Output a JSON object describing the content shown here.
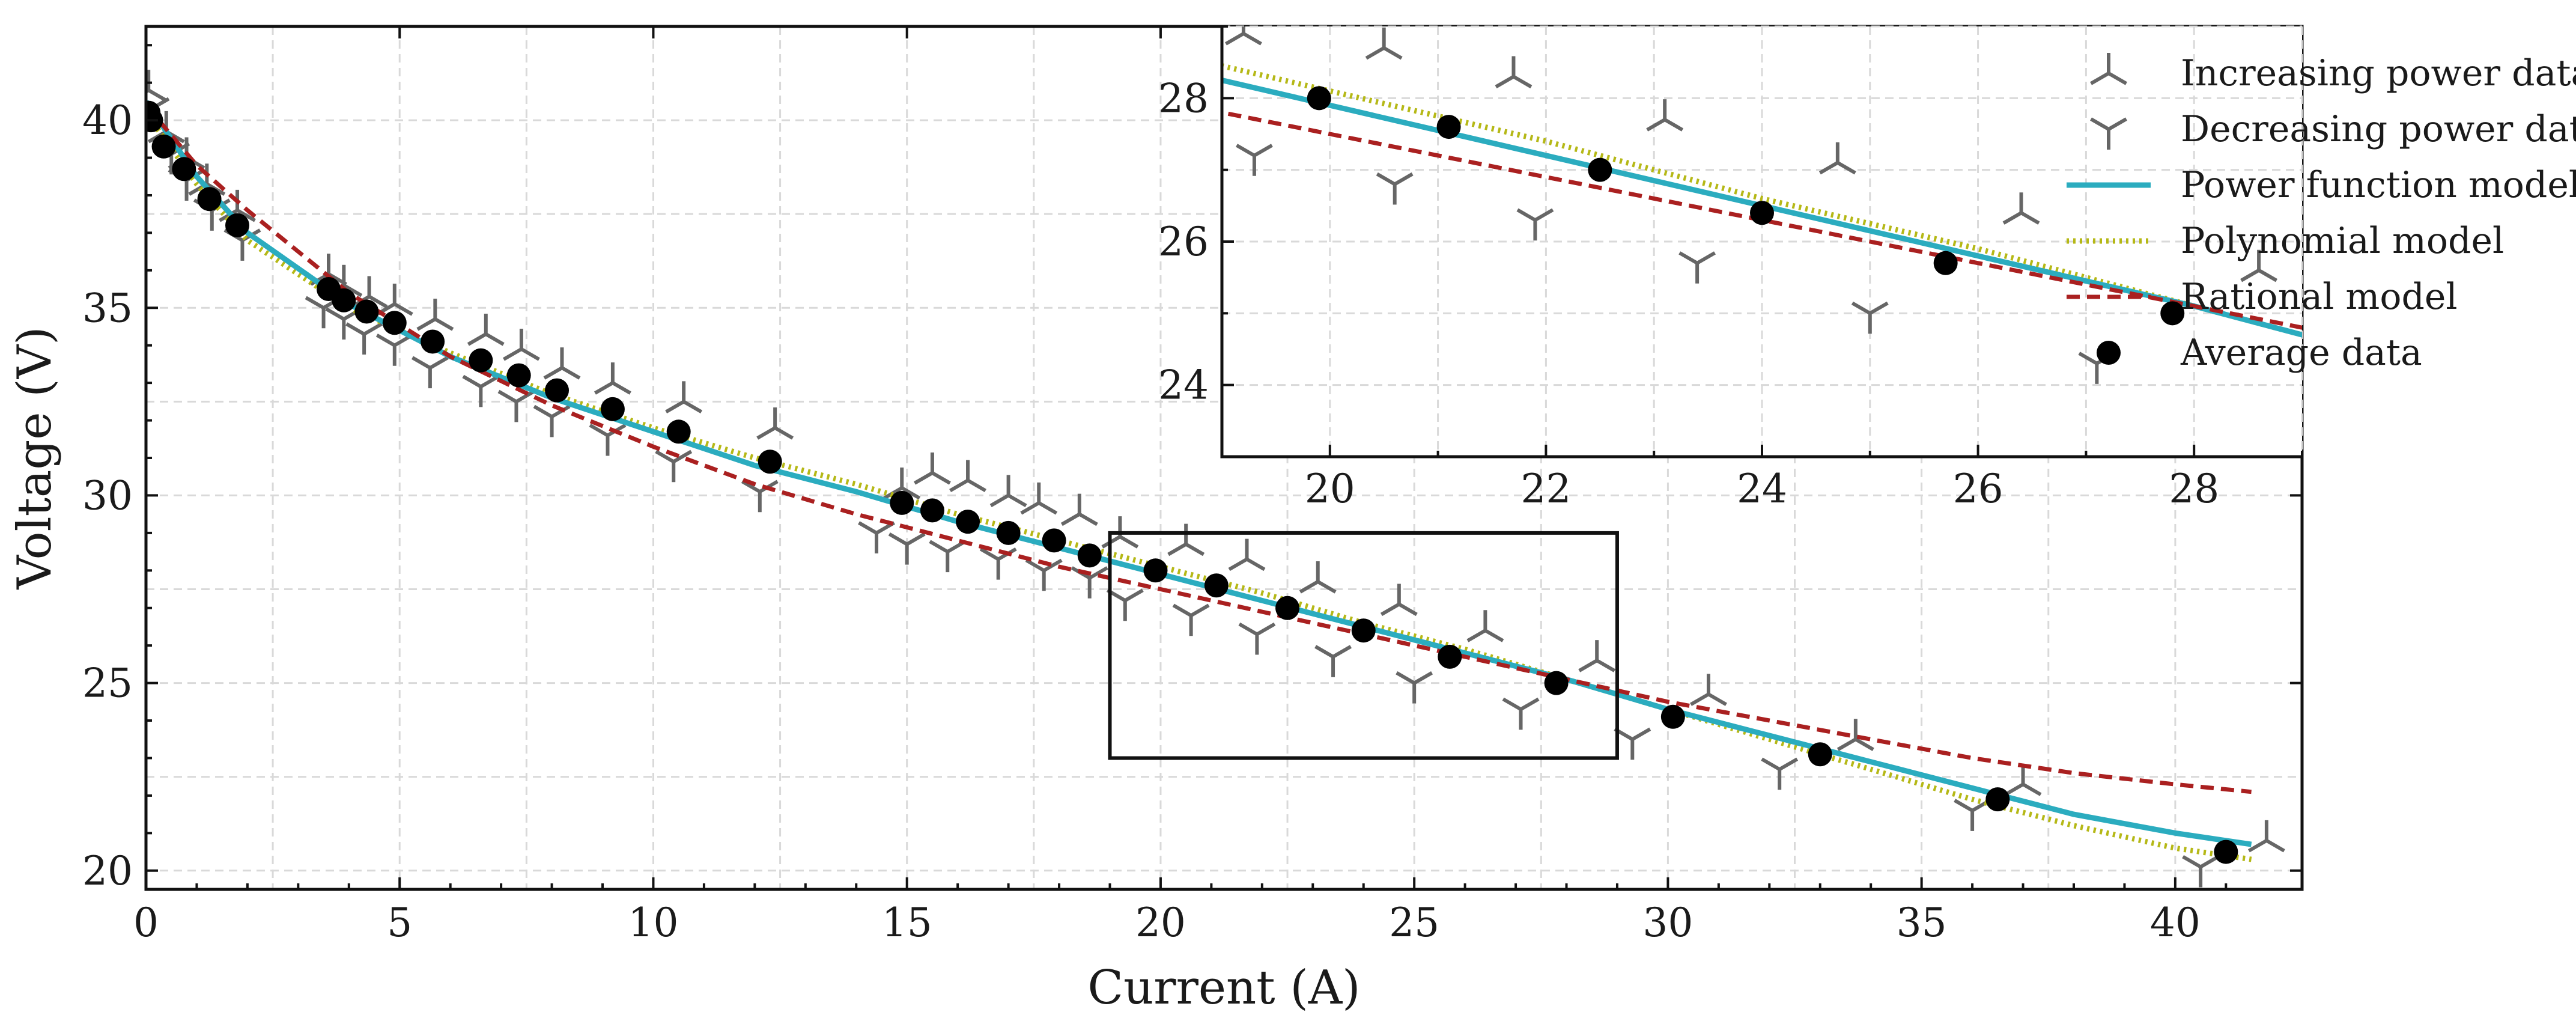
{
  "chart_data": [
    {
      "type": "line",
      "name": "main",
      "xlabel": "Current (A)",
      "ylabel": "Voltage (V)",
      "xlim": [
        0,
        42.5
      ],
      "ylim": [
        19.5,
        42.5
      ],
      "xticks": [
        0,
        5,
        10,
        15,
        20,
        25,
        30,
        35,
        40
      ],
      "yticks": [
        20,
        25,
        30,
        35,
        40
      ],
      "xtick_labels": [
        "0",
        "5",
        "10",
        "15",
        "20",
        "25",
        "30",
        "35",
        "40"
      ],
      "ytick_labels": [
        "20",
        "25",
        "30",
        "35",
        "40"
      ],
      "grid": true,
      "series": [
        {
          "name": "Increasing power data",
          "marker": "tri-up",
          "color": "#666666",
          "points": [
            [
              0.05,
              40.8
            ],
            [
              0.4,
              39.7
            ],
            [
              0.8,
              39.0
            ],
            [
              1.2,
              38.3
            ],
            [
              1.8,
              37.6
            ],
            [
              3.6,
              35.9
            ],
            [
              3.9,
              35.6
            ],
            [
              4.4,
              35.3
            ],
            [
              4.9,
              35.1
            ],
            [
              5.7,
              34.7
            ],
            [
              6.7,
              34.3
            ],
            [
              7.4,
              33.9
            ],
            [
              8.2,
              33.4
            ],
            [
              9.2,
              33.0
            ],
            [
              10.6,
              32.5
            ],
            [
              12.4,
              31.8
            ],
            [
              14.9,
              30.2
            ],
            [
              15.5,
              30.6
            ],
            [
              16.2,
              30.4
            ],
            [
              17.0,
              30.0
            ],
            [
              17.6,
              29.8
            ],
            [
              18.4,
              29.5
            ],
            [
              19.2,
              28.9
            ],
            [
              20.5,
              28.7
            ],
            [
              21.7,
              28.3
            ],
            [
              23.1,
              27.7
            ],
            [
              24.7,
              27.1
            ],
            [
              26.4,
              26.4
            ],
            [
              28.6,
              25.6
            ],
            [
              30.8,
              24.7
            ],
            [
              33.7,
              23.5
            ],
            [
              37.0,
              22.3
            ],
            [
              41.8,
              20.8
            ]
          ]
        },
        {
          "name": "Decreasing power data",
          "marker": "tri-down",
          "color": "#666666",
          "points": [
            [
              0.1,
              40.3
            ],
            [
              0.5,
              39.1
            ],
            [
              0.8,
              38.4
            ],
            [
              1.3,
              37.6
            ],
            [
              1.9,
              36.8
            ],
            [
              3.5,
              35.0
            ],
            [
              3.9,
              34.7
            ],
            [
              4.3,
              34.3
            ],
            [
              4.9,
              34.0
            ],
            [
              5.6,
              33.4
            ],
            [
              6.6,
              32.9
            ],
            [
              7.3,
              32.5
            ],
            [
              8.0,
              32.1
            ],
            [
              9.1,
              31.6
            ],
            [
              10.4,
              30.9
            ],
            [
              12.1,
              30.1
            ],
            [
              14.4,
              29.0
            ],
            [
              15.0,
              28.7
            ],
            [
              15.8,
              28.5
            ],
            [
              16.8,
              28.3
            ],
            [
              17.7,
              28.0
            ],
            [
              18.6,
              27.8
            ],
            [
              19.3,
              27.2
            ],
            [
              20.6,
              26.8
            ],
            [
              21.9,
              26.3
            ],
            [
              23.4,
              25.7
            ],
            [
              25.0,
              25.0
            ],
            [
              27.1,
              24.3
            ],
            [
              29.3,
              23.5
            ],
            [
              32.2,
              22.7
            ],
            [
              36.0,
              21.6
            ],
            [
              40.5,
              20.1
            ]
          ]
        },
        {
          "name": "Power function model",
          "style": "solid",
          "color": "#2bacbf",
          "points": [
            [
              0,
              40.5
            ],
            [
              1,
              38.5
            ],
            [
              2,
              37.0
            ],
            [
              4,
              35.1
            ],
            [
              6,
              33.7
            ],
            [
              8,
              32.6
            ],
            [
              10,
              31.7
            ],
            [
              12,
              30.8
            ],
            [
              14,
              30.1
            ],
            [
              16,
              29.3
            ],
            [
              18,
              28.6
            ],
            [
              20,
              27.9
            ],
            [
              22,
              27.2
            ],
            [
              24,
              26.5
            ],
            [
              26,
              25.8
            ],
            [
              28,
              25.1
            ],
            [
              30,
              24.3
            ],
            [
              32,
              23.6
            ],
            [
              34,
              22.9
            ],
            [
              36,
              22.2
            ],
            [
              38,
              21.5
            ],
            [
              40,
              21.0
            ],
            [
              41.5,
              20.7
            ]
          ]
        },
        {
          "name": "Polynomial model",
          "style": "dotted",
          "color": "#b5b816",
          "points": [
            [
              0,
              40.2
            ],
            [
              1,
              38.3
            ],
            [
              2,
              36.8
            ],
            [
              4,
              35.0
            ],
            [
              6,
              33.8
            ],
            [
              8,
              32.7
            ],
            [
              10,
              31.8
            ],
            [
              12,
              31.0
            ],
            [
              14,
              30.3
            ],
            [
              16,
              29.5
            ],
            [
              18,
              28.8
            ],
            [
              20,
              28.1
            ],
            [
              22,
              27.4
            ],
            [
              24,
              26.6
            ],
            [
              26,
              25.9
            ],
            [
              28,
              25.1
            ],
            [
              30,
              24.3
            ],
            [
              32,
              23.5
            ],
            [
              34,
              22.7
            ],
            [
              36,
              21.9
            ],
            [
              38,
              21.2
            ],
            [
              40,
              20.6
            ],
            [
              41.5,
              20.3
            ]
          ]
        },
        {
          "name": "Rational model",
          "style": "dashed",
          "color": "#aa2020",
          "points": [
            [
              0,
              40.4
            ],
            [
              1,
              38.8
            ],
            [
              2,
              37.6
            ],
            [
              4,
              35.4
            ],
            [
              6,
              33.7
            ],
            [
              8,
              32.4
            ],
            [
              10,
              31.3
            ],
            [
              12,
              30.3
            ],
            [
              14,
              29.5
            ],
            [
              16,
              28.8
            ],
            [
              18,
              28.1
            ],
            [
              20,
              27.5
            ],
            [
              22,
              26.9
            ],
            [
              24,
              26.3
            ],
            [
              26,
              25.7
            ],
            [
              28,
              25.1
            ],
            [
              30,
              24.5
            ],
            [
              32,
              24.0
            ],
            [
              34,
              23.5
            ],
            [
              36,
              23.0
            ],
            [
              38,
              22.6
            ],
            [
              40,
              22.3
            ],
            [
              41.5,
              22.1
            ]
          ]
        },
        {
          "name": "Average data",
          "marker": "circle",
          "color": "#000000",
          "points": [
            [
              0.05,
              40.2
            ],
            [
              0.1,
              40.0
            ],
            [
              0.35,
              39.3
            ],
            [
              0.75,
              38.7
            ],
            [
              1.25,
              37.9
            ],
            [
              1.8,
              37.2
            ],
            [
              3.6,
              35.5
            ],
            [
              3.9,
              35.2
            ],
            [
              4.35,
              34.9
            ],
            [
              4.9,
              34.6
            ],
            [
              5.65,
              34.1
            ],
            [
              6.6,
              33.6
            ],
            [
              7.35,
              33.2
            ],
            [
              8.1,
              32.8
            ],
            [
              9.2,
              32.3
            ],
            [
              10.5,
              31.7
            ],
            [
              12.3,
              30.9
            ],
            [
              14.9,
              29.8
            ],
            [
              15.5,
              29.6
            ],
            [
              16.2,
              29.3
            ],
            [
              17.0,
              29.0
            ],
            [
              17.9,
              28.8
            ],
            [
              18.6,
              28.4
            ],
            [
              19.9,
              28.0
            ],
            [
              21.1,
              27.6
            ],
            [
              22.5,
              27.0
            ],
            [
              24.0,
              26.4
            ],
            [
              25.7,
              25.7
            ],
            [
              27.8,
              25.0
            ],
            [
              30.1,
              24.1
            ],
            [
              33.0,
              23.1
            ],
            [
              36.5,
              21.9
            ],
            [
              41.0,
              20.5
            ]
          ]
        }
      ],
      "zoom_box": {
        "x": [
          19,
          29
        ],
        "y": [
          23,
          29
        ]
      }
    },
    {
      "type": "line",
      "name": "inset",
      "xlim": [
        19,
        29
      ],
      "ylim": [
        23,
        29
      ],
      "xticks": [
        20,
        22,
        24,
        26,
        28
      ],
      "yticks": [
        24,
        26,
        28
      ],
      "xtick_labels": [
        "20",
        "22",
        "24",
        "26",
        "28"
      ],
      "ytick_labels": [
        "24",
        "26",
        "28"
      ],
      "grid": true
    }
  ],
  "legend": {
    "position": "top-right",
    "entries": [
      {
        "label": "Increasing power data",
        "kind": "tri-up",
        "color": "#666666"
      },
      {
        "label": "Decreasing power data",
        "kind": "tri-down",
        "color": "#666666"
      },
      {
        "label": "Power function model",
        "kind": "solid",
        "color": "#2bacbf"
      },
      {
        "label": "Polynomial model",
        "kind": "dotted",
        "color": "#b5b816"
      },
      {
        "label": "Rational model",
        "kind": "dashed",
        "color": "#aa2020"
      },
      {
        "label": "Average data",
        "kind": "circle",
        "color": "#000000"
      }
    ]
  }
}
